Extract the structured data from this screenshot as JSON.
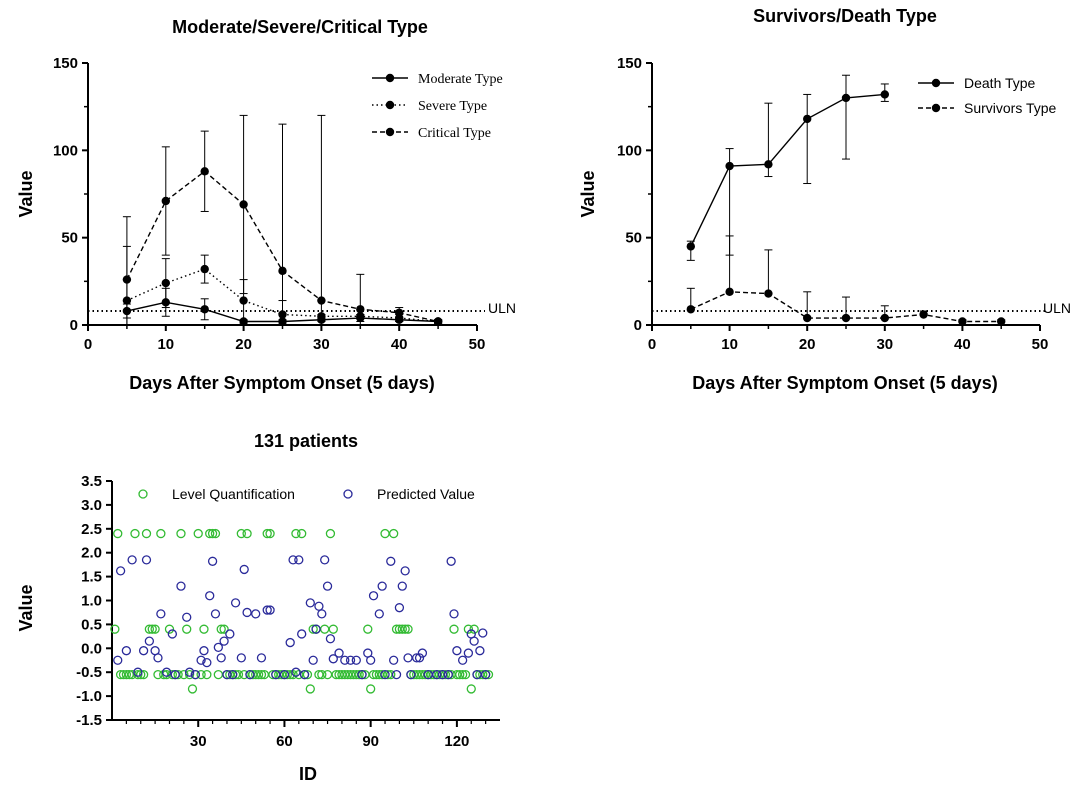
{
  "chart_data": [
    {
      "type": "line",
      "title": "Moderate/Severe/Critical Type",
      "xlabel": "Days After Symptom Onset (5 days)",
      "ylabel": "Value",
      "xlim": [
        0,
        50
      ],
      "ylim": [
        0,
        150
      ],
      "xticks": [
        "0",
        "10",
        "20",
        "30",
        "40",
        "50"
      ],
      "yticks": [
        "0",
        "50",
        "100",
        "150"
      ],
      "reference_line": {
        "label": "ULN",
        "value": 8
      },
      "legend_position": "top-right",
      "series": [
        {
          "name": "Moderate Type",
          "dash": "solid",
          "x": [
            5,
            10,
            15,
            20,
            25,
            30,
            35,
            40,
            45
          ],
          "y": [
            8,
            13,
            9,
            2,
            2,
            3,
            4,
            3,
            2
          ],
          "err": [
            4,
            8,
            6,
            1,
            1,
            1,
            2,
            1,
            1
          ]
        },
        {
          "name": "Severe Type",
          "dash": "dotted",
          "x": [
            5,
            10,
            15,
            20,
            25,
            30,
            35,
            40,
            45
          ],
          "y": [
            14,
            24,
            32,
            14,
            6,
            5,
            5,
            4,
            2
          ],
          "err": [
            31,
            14,
            8,
            12,
            8,
            1,
            1,
            2,
            1
          ]
        },
        {
          "name": "Critical Type",
          "dash": "dashed",
          "x": [
            5,
            10,
            15,
            20,
            25,
            30,
            35,
            40,
            45
          ],
          "y": [
            26,
            71,
            88,
            69,
            31,
            14,
            9,
            7,
            2
          ],
          "err": [
            36,
            31,
            23,
            51,
            84,
            106,
            20,
            3,
            1
          ]
        }
      ]
    },
    {
      "type": "line",
      "title": "Survivors/Death Type",
      "xlabel": "Days After Symptom Onset (5 days)",
      "ylabel": "Value",
      "xlim": [
        0,
        50
      ],
      "ylim": [
        0,
        150
      ],
      "xticks": [
        "0",
        "10",
        "20",
        "30",
        "40",
        "50"
      ],
      "yticks": [
        "0",
        "50",
        "100",
        "150"
      ],
      "reference_line": {
        "label": "ULN",
        "value": 8
      },
      "legend_position": "top-right",
      "series": [
        {
          "name": "Death Type",
          "dash": "solid",
          "x": [
            5,
            10,
            15,
            20,
            25,
            30
          ],
          "y": [
            45,
            91,
            92,
            118,
            130,
            132
          ],
          "err_up": [
            3,
            10,
            35,
            14,
            13,
            6
          ],
          "err_down": [
            8,
            51,
            7,
            37,
            35,
            4
          ]
        },
        {
          "name": "Survivors Type",
          "dash": "dashed",
          "x": [
            5,
            10,
            15,
            20,
            25,
            30,
            35,
            40,
            45
          ],
          "y": [
            9,
            19,
            18,
            4,
            4,
            4,
            6,
            2,
            2
          ],
          "err_up": [
            12,
            32,
            25,
            15,
            12,
            7,
            2,
            1,
            1
          ],
          "err_down": [
            0,
            0,
            0,
            0,
            0,
            0,
            0,
            0,
            0
          ]
        }
      ]
    },
    {
      "type": "scatter",
      "title": "131 patients",
      "xlabel": "ID",
      "ylabel": "Value",
      "xlim": [
        0,
        135
      ],
      "ylim": [
        -1.5,
        3.5
      ],
      "xticks": [
        "30",
        "60",
        "90",
        "120"
      ],
      "yticks": [
        "-1.5",
        "-1.0",
        "-0.5",
        "0.0",
        "0.5",
        "1.0",
        "1.5",
        "2.0",
        "2.5",
        "3.0",
        "3.5"
      ],
      "legend_position": "top",
      "series": [
        {
          "name": "Level Quantification",
          "color": "#33bb33",
          "x": [
            1,
            2,
            3,
            4,
            5,
            6,
            7,
            8,
            9,
            10,
            11,
            12,
            13,
            14,
            15,
            16,
            17,
            18,
            19,
            20,
            21,
            22,
            23,
            24,
            25,
            26,
            27,
            28,
            29,
            30,
            31,
            32,
            33,
            34,
            35,
            36,
            37,
            38,
            39,
            40,
            41,
            42,
            43,
            44,
            45,
            46,
            47,
            48,
            49,
            50,
            51,
            52,
            53,
            54,
            55,
            56,
            57,
            58,
            59,
            60,
            61,
            62,
            63,
            64,
            65,
            66,
            67,
            68,
            69,
            70,
            71,
            72,
            73,
            74,
            75,
            76,
            77,
            78,
            79,
            80,
            81,
            82,
            83,
            84,
            85,
            86,
            87,
            88,
            89,
            90,
            91,
            92,
            93,
            94,
            95,
            96,
            97,
            98,
            99,
            100,
            101,
            102,
            103,
            104,
            105,
            106,
            107,
            108,
            109,
            110,
            111,
            112,
            113,
            114,
            115,
            116,
            117,
            118,
            119,
            120,
            121,
            122,
            123,
            124,
            125,
            126,
            127,
            128,
            129,
            130,
            131
          ],
          "y": [
            0.4,
            2.4,
            -0.55,
            -0.55,
            -0.55,
            -0.55,
            -0.55,
            2.4,
            -0.55,
            -0.55,
            -0.55,
            2.4,
            0.4,
            0.4,
            0.4,
            -0.55,
            2.4,
            -0.55,
            -0.55,
            0.4,
            -0.55,
            -0.55,
            -0.55,
            2.4,
            -0.55,
            0.4,
            -0.55,
            -0.85,
            -0.55,
            2.4,
            -0.55,
            0.4,
            -0.55,
            2.4,
            2.4,
            2.4,
            -0.55,
            0.4,
            0.4,
            -0.55,
            -0.55,
            -0.55,
            -0.55,
            -0.55,
            2.4,
            -0.55,
            2.4,
            -0.55,
            -0.55,
            -0.55,
            -0.55,
            -0.55,
            -0.55,
            2.4,
            2.4,
            -0.55,
            -0.55,
            -0.55,
            -0.55,
            -0.55,
            -0.55,
            -0.55,
            -0.55,
            2.4,
            -0.55,
            2.4,
            -0.55,
            -0.55,
            -0.85,
            0.4,
            0.4,
            -0.55,
            -0.55,
            0.4,
            -0.55,
            2.4,
            0.4,
            -0.55,
            -0.55,
            -0.55,
            -0.55,
            -0.55,
            -0.55,
            -0.55,
            -0.55,
            -0.55,
            -0.55,
            -0.55,
            0.4,
            -0.85,
            -0.55,
            -0.55,
            -0.55,
            -0.55,
            2.4,
            -0.55,
            -0.55,
            2.4,
            0.4,
            0.4,
            0.4,
            0.4,
            0.4,
            -0.55,
            -0.55,
            -0.55,
            -0.55,
            -0.55,
            -0.55,
            -0.55,
            -0.55,
            -0.55,
            -0.55,
            -0.55,
            -0.55,
            -0.55,
            -0.55,
            -0.55,
            0.4,
            -0.55,
            -0.55,
            -0.55,
            -0.55,
            0.4,
            -0.85,
            0.4,
            -0.55,
            -0.55,
            -0.55,
            -0.55,
            -0.55
          ]
        },
        {
          "name": "Predicted Value",
          "color": "#2a2a9a",
          "x": [
            2,
            3,
            5,
            7,
            9,
            11,
            12,
            13,
            15,
            16,
            17,
            19,
            21,
            22,
            24,
            26,
            27,
            29,
            31,
            32,
            33,
            34,
            35,
            36,
            37,
            38,
            39,
            40,
            41,
            42,
            43,
            45,
            46,
            47,
            48,
            50,
            52,
            54,
            55,
            57,
            60,
            62,
            63,
            64,
            65,
            66,
            67,
            69,
            70,
            71,
            72,
            73,
            74,
            75,
            76,
            77,
            79,
            81,
            83,
            85,
            87,
            89,
            90,
            91,
            93,
            94,
            95,
            97,
            98,
            99,
            100,
            101,
            102,
            103,
            104,
            106,
            107,
            108,
            110,
            113,
            115,
            117,
            118,
            119,
            120,
            122,
            124,
            125,
            126,
            127,
            128,
            129,
            130
          ],
          "y": [
            -0.25,
            1.62,
            -0.05,
            1.85,
            -0.5,
            -0.05,
            1.85,
            0.15,
            -0.05,
            -0.2,
            0.72,
            -0.5,
            0.3,
            -0.55,
            1.3,
            0.65,
            -0.5,
            -0.55,
            -0.25,
            -0.05,
            -0.3,
            1.1,
            1.82,
            0.72,
            0.02,
            -0.2,
            0.15,
            -0.55,
            0.3,
            -0.55,
            0.95,
            -0.2,
            1.65,
            0.75,
            -0.55,
            0.72,
            -0.2,
            0.8,
            0.8,
            -0.55,
            -0.55,
            0.12,
            1.85,
            -0.5,
            1.85,
            0.3,
            -0.55,
            0.95,
            -0.25,
            0.4,
            0.88,
            0.72,
            1.85,
            1.3,
            0.2,
            -0.22,
            -0.1,
            -0.25,
            -0.25,
            -0.25,
            -0.55,
            -0.1,
            -0.25,
            1.1,
            0.72,
            1.3,
            -0.55,
            1.82,
            -0.25,
            -0.55,
            0.85,
            1.3,
            1.62,
            -0.2,
            -0.55,
            -0.2,
            -0.2,
            -0.1,
            -0.55,
            -0.55,
            -0.55,
            -0.55,
            1.82,
            0.72,
            -0.05,
            -0.25,
            -0.1,
            0.3,
            0.15,
            -0.55,
            -0.05,
            0.32,
            -0.55
          ]
        }
      ]
    }
  ]
}
